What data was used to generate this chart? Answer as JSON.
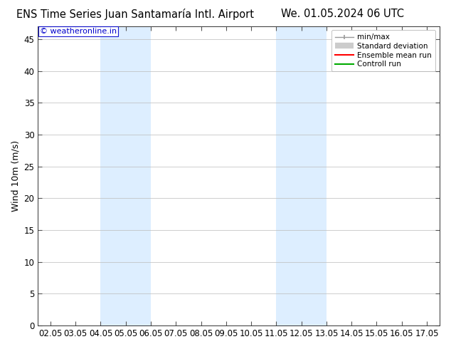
{
  "title_left": "ENS Time Series Juan Santamaría Intl. Airport",
  "title_right": "We. 01.05.2024 06 UTC",
  "ylabel": "Wind 10m (m/s)",
  "watermark": "© weatheronline.in",
  "watermark_color": "#0000cc",
  "background_color": "#ffffff",
  "plot_bg_color": "#ffffff",
  "shaded_band_color": "#ddeeff",
  "xlim_start": 1.5,
  "xlim_end": 17.5,
  "ylim_min": 0,
  "ylim_max": 47,
  "yticks": [
    0,
    5,
    10,
    15,
    20,
    25,
    30,
    35,
    40,
    45
  ],
  "xtick_labels": [
    "02.05",
    "03.05",
    "04.05",
    "05.05",
    "06.05",
    "07.05",
    "08.05",
    "09.05",
    "10.05",
    "11.05",
    "12.05",
    "13.05",
    "14.05",
    "15.05",
    "16.05",
    "17.05"
  ],
  "xtick_positions": [
    2,
    3,
    4,
    5,
    6,
    7,
    8,
    9,
    10,
    11,
    12,
    13,
    14,
    15,
    16,
    17
  ],
  "shaded_bands": [
    {
      "x_start": 4.0,
      "x_end": 6.0
    },
    {
      "x_start": 11.0,
      "x_end": 13.0
    }
  ],
  "legend_items": [
    {
      "label": "min/max",
      "color": "#999999",
      "linestyle": "-",
      "linewidth": 1.0
    },
    {
      "label": "Standard deviation",
      "color": "#cccccc",
      "linestyle": "-",
      "linewidth": 6.0
    },
    {
      "label": "Ensemble mean run",
      "color": "#ff0000",
      "linestyle": "-",
      "linewidth": 1.5
    },
    {
      "label": "Controll run",
      "color": "#00aa00",
      "linestyle": "-",
      "linewidth": 1.5
    }
  ],
  "title_fontsize": 10.5,
  "axis_fontsize": 9,
  "tick_fontsize": 8.5
}
